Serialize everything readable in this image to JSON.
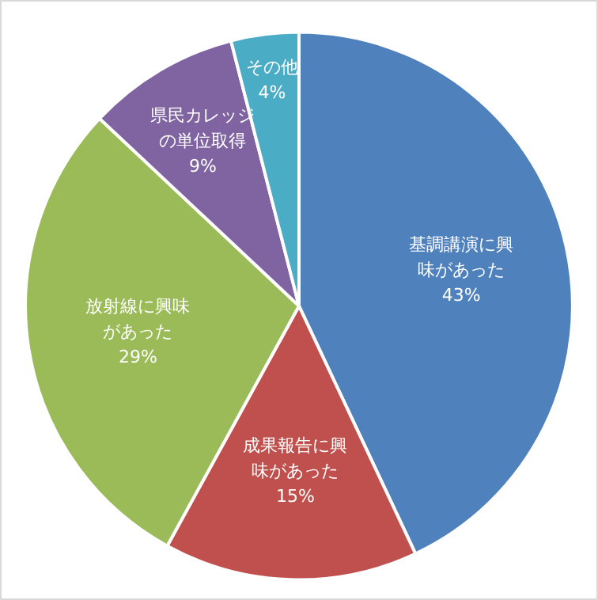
{
  "chart_data": {
    "type": "pie",
    "categories": [
      "基調講演に興味があった",
      "成果報告に興味があった",
      "放射線に興味があった",
      "県民カレッジの単位取得",
      "その他"
    ],
    "values": [
      43,
      15,
      29,
      9,
      4
    ],
    "value_labels": [
      "43%",
      "15%",
      "29%",
      "9%",
      "4%"
    ],
    "colors": [
      "#4f81bd",
      "#c0504d",
      "#9bbb59",
      "#8064a2",
      "#4bacc6"
    ],
    "data_labels": true,
    "legend": false
  }
}
